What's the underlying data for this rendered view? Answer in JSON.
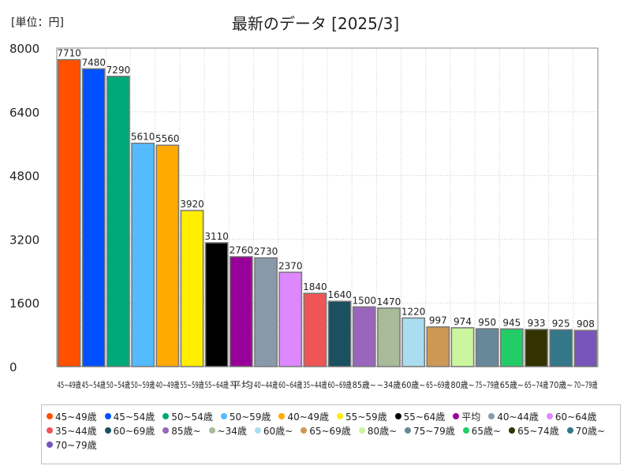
{
  "header": {
    "unit": "[単位：円]"
  },
  "chart_data": {
    "type": "bar",
    "title": "最新のデータ [2025/3]",
    "ylim": [
      0,
      8000
    ],
    "yticks": [
      0,
      1600,
      3200,
      4800,
      6400,
      8000
    ],
    "legend_position": "bottom",
    "categories": [
      "45~49歳",
      "45~54歳",
      "50~54歳",
      "50~59歳",
      "40~49歳",
      "55~59歳",
      "55~64歳",
      "平均",
      "40~44歳",
      "60~64歳",
      "35~44歳",
      "60~69歳",
      "85歳~",
      "~34歳",
      "60歳~",
      "65~69歳",
      "80歳~",
      "75~79歳",
      "65歳~",
      "65~74歳",
      "70歳~",
      "70~79歳"
    ],
    "axis_labels": [
      "45~49歳",
      "45~54歳",
      "50~54歳",
      "50~59歳",
      "40~49歳",
      "55~59歳",
      "55~64歳",
      "平均",
      "40~44歳",
      "60~64歳",
      "35~44歳",
      "60~69歳",
      "85歳~",
      "~34歳",
      "60歳~",
      "65~69歳",
      "80歳~",
      "75~79歳",
      "65歳~",
      "65~74歳",
      "70歳~",
      "70~79歳"
    ],
    "values": [
      7710,
      7480,
      7290,
      5610,
      5560,
      3920,
      3110,
      2760,
      2730,
      2370,
      1840,
      1640,
      1500,
      1470,
      1220,
      997,
      974,
      950,
      945,
      933,
      925,
      908
    ],
    "colors": [
      "#ff5000",
      "#0050ff",
      "#00aa78",
      "#55bbff",
      "#ffaa00",
      "#ffee00",
      "#000000",
      "#990099",
      "#8899aa",
      "#dd88ff",
      "#ee5555",
      "#1a5060",
      "#9966bb",
      "#aabb99",
      "#aaddf0",
      "#cc9955",
      "#ccf5a0",
      "#668899",
      "#22cc66",
      "#333300",
      "#337788",
      "#7755bb"
    ]
  }
}
